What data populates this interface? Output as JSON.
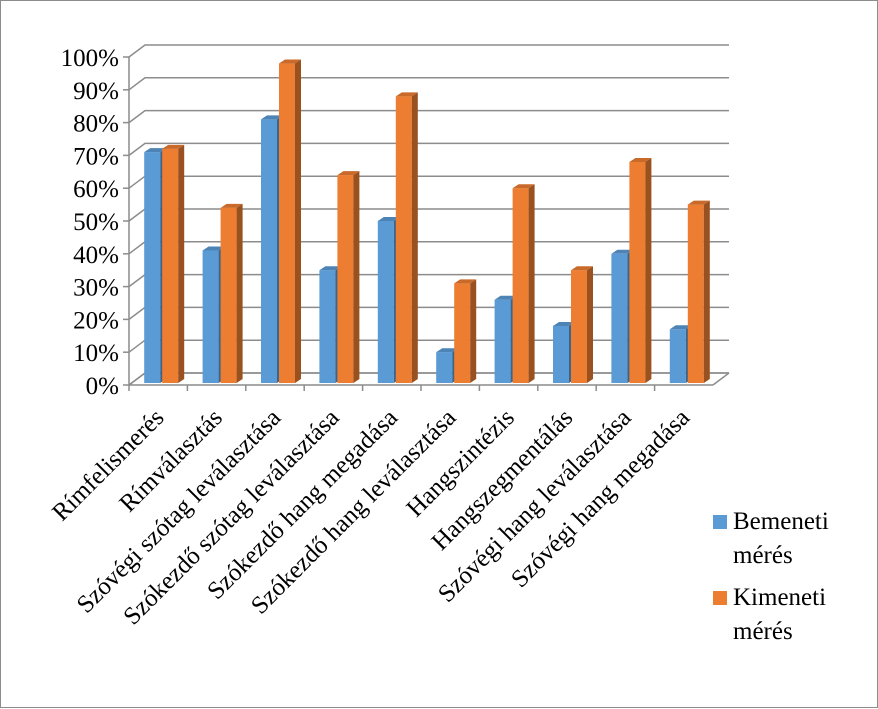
{
  "chart_data": {
    "type": "bar",
    "categories": [
      "Rímfelismerés",
      "Rímválasztás",
      "Szóvégi szótag leválasztása",
      "Szókezdő szótag leválasztása",
      "Szókezdő hang megadása",
      "Szókezdő hang leválasztása",
      "Hangszintézis",
      "Hangszegmentálás",
      "Szóvégi hang leválasztása",
      "Szóvégi hang megadása"
    ],
    "series": [
      {
        "name": "Bemeneti mérés",
        "name_lines": [
          "Bemeneti",
          "mérés"
        ],
        "color": "#5b9bd5",
        "values": [
          0.71,
          0.41,
          0.81,
          0.35,
          0.5,
          0.1,
          0.26,
          0.18,
          0.4,
          0.17
        ]
      },
      {
        "name": "Kimeneti mérés",
        "name_lines": [
          "Kimeneti",
          "mérés"
        ],
        "color": "#ed7d31",
        "values": [
          0.72,
          0.54,
          0.98,
          0.64,
          0.88,
          0.31,
          0.6,
          0.35,
          0.68,
          0.55
        ]
      }
    ],
    "ylim": [
      0,
      1
    ],
    "yticks": [
      "0%",
      "10%",
      "20%",
      "30%",
      "40%",
      "50%",
      "60%",
      "70%",
      "80%",
      "90%",
      "100%"
    ],
    "title": "",
    "xlabel": "",
    "ylabel": "",
    "grid": true,
    "legend_position": "right",
    "style": "3d-clustered-column"
  }
}
